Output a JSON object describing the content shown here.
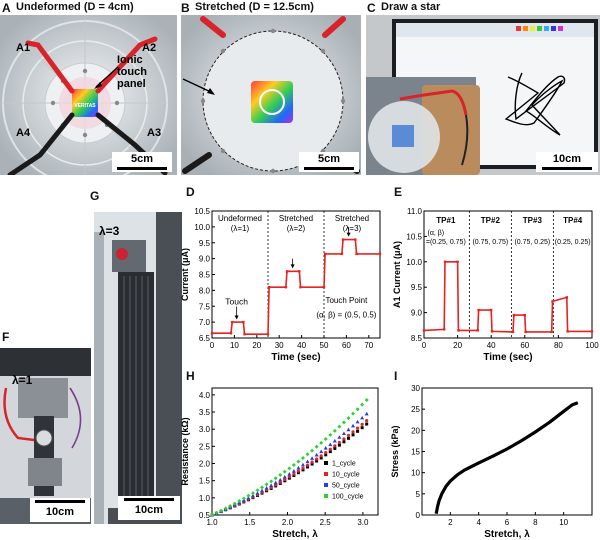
{
  "panels": {
    "A": {
      "letter": "A",
      "title": "Undeformed (D = 4cm)",
      "labels": [
        "A1",
        "A2",
        "A3",
        "A4"
      ],
      "callout": "Ionic touch panel",
      "scale": "5cm",
      "logo_text": "VERITAS"
    },
    "B": {
      "letter": "B",
      "title": "Stretched (D = 12.5cm)",
      "scale": "5cm"
    },
    "C": {
      "letter": "C",
      "title": "Draw a star",
      "scale": "10cm"
    },
    "F": {
      "letter": "F",
      "lambda": "λ=1",
      "scale": "10cm"
    },
    "G": {
      "letter": "G",
      "lambda": "λ=3",
      "scale": "10cm"
    }
  },
  "chart_data": [
    {
      "id": "D",
      "letter": "D",
      "type": "line",
      "xlabel": "Time (sec)",
      "ylabel": "Current (μA)",
      "xlim": [
        0,
        75
      ],
      "ylim": [
        6.5,
        10.5
      ],
      "xticks": [
        0,
        10,
        20,
        30,
        40,
        50,
        60,
        70
      ],
      "yticks": [
        6.5,
        7.0,
        7.5,
        8.0,
        8.5,
        9.0,
        9.5,
        10.0,
        10.5
      ],
      "color": "#e8231f",
      "dividers": [
        25,
        50
      ],
      "segments": [
        {
          "title": "Undeformed",
          "lambda": "(λ=1)",
          "x": 12.5
        },
        {
          "title": "Stretched",
          "lambda": "(λ=2)",
          "x": 37.5
        },
        {
          "title": "Stretched",
          "lambda": "(λ=3)",
          "x": 62.5
        }
      ],
      "points": [
        [
          0,
          6.65
        ],
        [
          8.5,
          6.65
        ],
        [
          9,
          7.0
        ],
        [
          14,
          7.0
        ],
        [
          14.5,
          6.62
        ],
        [
          25,
          6.62
        ],
        [
          25.5,
          8.1
        ],
        [
          33,
          8.1
        ],
        [
          33.5,
          8.6
        ],
        [
          39,
          8.6
        ],
        [
          39.5,
          8.1
        ],
        [
          50,
          8.1
        ],
        [
          50.5,
          9.15
        ],
        [
          58,
          9.15
        ],
        [
          58.5,
          9.6
        ],
        [
          64,
          9.6
        ],
        [
          64.5,
          9.15
        ],
        [
          75,
          9.15
        ]
      ],
      "annotations": [
        {
          "text": "Touch",
          "x": 11,
          "y": 7.55,
          "arrow_to": [
            11,
            7.05
          ]
        },
        {
          "text": "",
          "x": 36,
          "y": 9.0,
          "arrow_to": [
            36,
            8.66
          ]
        },
        {
          "text": "",
          "x": 61,
          "y": 10.0,
          "arrow_to": [
            61,
            9.66
          ]
        }
      ],
      "note_line1": "Touch Point",
      "note_line2": "(α, β) = (0.5, 0.5)"
    },
    {
      "id": "E",
      "letter": "E",
      "type": "line",
      "xlabel": "Time (sec)",
      "ylabel": "A1 Current (μA)",
      "xlim": [
        0,
        100
      ],
      "ylim": [
        8.5,
        11.0
      ],
      "xticks": [
        0,
        20,
        40,
        60,
        80,
        100
      ],
      "yticks": [
        8.5,
        9.0,
        9.5,
        10.0,
        10.5,
        11.0
      ],
      "color": "#e8231f",
      "dividers": [
        27,
        52,
        77
      ],
      "segments": [
        {
          "title": "TP#1",
          "ab": "(α, β)",
          "coords": "=(0.25, 0.75)",
          "x": 13
        },
        {
          "title": "TP#2",
          "ab": "",
          "coords": "(0.75, 0.75)",
          "x": 39.5
        },
        {
          "title": "TP#3",
          "ab": "",
          "coords": "(0.75, 0.25)",
          "x": 64.5
        },
        {
          "title": "TP#4",
          "ab": "",
          "coords": "(0.25, 0.25)",
          "x": 88.5
        }
      ],
      "points": [
        [
          0,
          8.65
        ],
        [
          12,
          8.67
        ],
        [
          12.5,
          10.0
        ],
        [
          20,
          10.0
        ],
        [
          20.5,
          8.65
        ],
        [
          32,
          8.65
        ],
        [
          32.5,
          9.05
        ],
        [
          40,
          9.05
        ],
        [
          40.5,
          8.63
        ],
        [
          53,
          8.62
        ],
        [
          53.5,
          8.95
        ],
        [
          60,
          8.95
        ],
        [
          60.5,
          8.62
        ],
        [
          76,
          8.62
        ],
        [
          76.5,
          9.22
        ],
        [
          85,
          9.3
        ],
        [
          85.5,
          8.63
        ],
        [
          100,
          8.63
        ]
      ]
    },
    {
      "id": "H",
      "letter": "H",
      "type": "scatter",
      "xlabel": "Stretch, λ",
      "ylabel": "Resistance (kΩ)",
      "xlim": [
        1.0,
        3.2
      ],
      "ylim": [
        0.5,
        4.2
      ],
      "xticks": [
        1.0,
        1.5,
        2.0,
        2.5,
        3.0
      ],
      "yticks": [
        0.5,
        1.0,
        1.5,
        2.0,
        2.5,
        3.0,
        3.5,
        4.0
      ],
      "legend_position": "bottom-right",
      "series": [
        {
          "name": "1_cycle",
          "color": "#000000",
          "marker": "square",
          "x_range": [
            1.0,
            3.05
          ],
          "y_start": 0.5,
          "y_end": 3.15
        },
        {
          "name": "10_cycle",
          "color": "#e8231f",
          "marker": "circle",
          "x_range": [
            1.0,
            3.05
          ],
          "y_start": 0.5,
          "y_end": 3.25
        },
        {
          "name": "50_cycle",
          "color": "#1f3fe8",
          "marker": "triangle",
          "x_range": [
            1.0,
            3.05
          ],
          "y_start": 0.5,
          "y_end": 3.45
        },
        {
          "name": "100_cycle",
          "color": "#2fd12f",
          "marker": "diamond",
          "x_range": [
            1.0,
            3.05
          ],
          "y_start": 0.5,
          "y_end": 3.85
        }
      ]
    },
    {
      "id": "I",
      "letter": "I",
      "type": "line",
      "xlabel": "Stretch, λ",
      "ylabel": "Stress (kPa)",
      "xlim": [
        0,
        12
      ],
      "ylim": [
        0,
        30
      ],
      "xticks": [
        2,
        4,
        6,
        8,
        10
      ],
      "yticks": [
        0,
        5,
        10,
        15,
        20,
        25,
        30
      ],
      "color": "#000000",
      "points": [
        [
          1.0,
          0.3
        ],
        [
          1.1,
          2.0
        ],
        [
          1.2,
          3.3
        ],
        [
          1.4,
          5.0
        ],
        [
          1.7,
          6.8
        ],
        [
          2.0,
          8.0
        ],
        [
          2.5,
          9.5
        ],
        [
          3,
          10.6
        ],
        [
          4,
          12.3
        ],
        [
          5,
          13.9
        ],
        [
          6,
          15.6
        ],
        [
          7,
          17.5
        ],
        [
          8,
          19.6
        ],
        [
          9,
          21.9
        ],
        [
          10,
          24.5
        ],
        [
          10.6,
          26.0
        ],
        [
          11,
          26.5
        ]
      ]
    }
  ]
}
